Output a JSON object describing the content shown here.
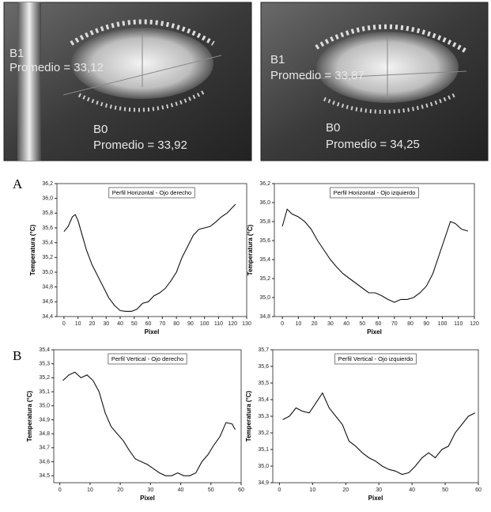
{
  "images": [
    {
      "b1": "B1",
      "b1_avg": "Promedio = 33,12",
      "b0": "B0",
      "b0_avg": "Promedio = 33,92"
    },
    {
      "b1": "B1",
      "b1_avg": "Promedio = 33,87",
      "b0": "B0",
      "b0_avg": "Promedio = 34,25"
    }
  ],
  "panel_labels": [
    "A",
    "B"
  ],
  "chart_data": [
    {
      "type": "line",
      "title": "Perfil Horizontal - Ojo derecho",
      "xlabel": "Pixel",
      "ylabel": "Temperatura (°C)",
      "color": "#111111",
      "x": [
        0,
        3,
        6,
        8,
        10,
        13,
        16,
        20,
        24,
        28,
        32,
        36,
        40,
        44,
        48,
        52,
        56,
        60,
        64,
        68,
        72,
        76,
        80,
        84,
        88,
        92,
        96,
        100,
        104,
        108,
        112,
        116,
        120,
        122
      ],
      "values": [
        35.55,
        35.62,
        35.75,
        35.78,
        35.7,
        35.5,
        35.3,
        35.1,
        34.95,
        34.8,
        34.65,
        34.55,
        34.48,
        34.47,
        34.47,
        34.5,
        34.58,
        34.6,
        34.68,
        34.72,
        34.78,
        34.88,
        35.0,
        35.2,
        35.35,
        35.5,
        35.58,
        35.6,
        35.62,
        35.68,
        35.75,
        35.8,
        35.88,
        35.92
      ],
      "xlim": [
        -5,
        130
      ],
      "xticks": [
        0,
        10,
        20,
        30,
        40,
        50,
        60,
        70,
        80,
        90,
        100,
        110,
        120,
        130
      ],
      "ylim": [
        34.4,
        36.2
      ],
      "yticks": [
        {
          "value": 34.4,
          "label": "34,4"
        },
        {
          "value": 34.6,
          "label": "34,6"
        },
        {
          "value": 34.8,
          "label": "34,8"
        },
        {
          "value": 35.0,
          "label": "35,0"
        },
        {
          "value": 35.2,
          "label": "35,2"
        },
        {
          "value": 35.4,
          "label": "35,4"
        },
        {
          "value": 35.6,
          "label": "35,6"
        },
        {
          "value": 35.8,
          "label": "35,8"
        },
        {
          "value": 36.0,
          "label": "36,0"
        },
        {
          "value": 36.2,
          "label": "36,2"
        }
      ]
    },
    {
      "type": "line",
      "title": "Perfil Horizontal - Ojo izquierdo",
      "xlabel": "Pixel",
      "ylabel": "Temperatura (°C)",
      "color": "#111111",
      "x": [
        0,
        3,
        6,
        10,
        14,
        18,
        22,
        26,
        30,
        34,
        38,
        42,
        46,
        50,
        54,
        58,
        62,
        66,
        70,
        74,
        78,
        82,
        86,
        90,
        94,
        98,
        102,
        105,
        108,
        112,
        116
      ],
      "values": [
        35.75,
        35.93,
        35.88,
        35.85,
        35.8,
        35.72,
        35.6,
        35.5,
        35.4,
        35.32,
        35.25,
        35.2,
        35.15,
        35.1,
        35.05,
        35.05,
        35.02,
        34.98,
        34.95,
        34.98,
        34.98,
        35.0,
        35.05,
        35.12,
        35.25,
        35.45,
        35.65,
        35.8,
        35.78,
        35.72,
        35.7
      ],
      "xlim": [
        -5,
        120
      ],
      "xticks": [
        0,
        10,
        20,
        30,
        40,
        50,
        60,
        70,
        80,
        90,
        100,
        110,
        120
      ],
      "ylim": [
        34.8,
        36.2
      ],
      "yticks": [
        {
          "value": 34.8,
          "label": "34,8"
        },
        {
          "value": 35.0,
          "label": "35,0"
        },
        {
          "value": 35.2,
          "label": "35,2"
        },
        {
          "value": 35.4,
          "label": "35,4"
        },
        {
          "value": 35.6,
          "label": "35,6"
        },
        {
          "value": 35.8,
          "label": "35,8"
        },
        {
          "value": 36.0,
          "label": "36,0"
        },
        {
          "value": 36.2,
          "label": "36,2"
        }
      ]
    },
    {
      "type": "line",
      "title": "Perfil Vertical - Ojo derecho",
      "xlabel": "Pixel",
      "ylabel": "Temperatura (°C)",
      "color": "#111111",
      "x": [
        1,
        3,
        5,
        7,
        9,
        11,
        13,
        15,
        17,
        19,
        21,
        23,
        25,
        27,
        29,
        31,
        33,
        35,
        37,
        39,
        41,
        43,
        45,
        47,
        49,
        51,
        53,
        55,
        57,
        58
      ],
      "values": [
        35.18,
        35.22,
        35.24,
        35.2,
        35.22,
        35.18,
        35.1,
        34.95,
        34.85,
        34.8,
        34.75,
        34.68,
        34.62,
        34.6,
        34.58,
        34.55,
        34.52,
        34.5,
        34.5,
        34.52,
        34.5,
        34.5,
        34.52,
        34.6,
        34.65,
        34.72,
        34.78,
        34.88,
        34.87,
        34.83
      ],
      "xlim": [
        -2,
        60
      ],
      "xticks": [
        0,
        10,
        20,
        30,
        40,
        50,
        60
      ],
      "ylim": [
        34.45,
        35.4
      ],
      "yticks": [
        {
          "value": 34.5,
          "label": "34,5"
        },
        {
          "value": 34.6,
          "label": "34,6"
        },
        {
          "value": 34.7,
          "label": "34,7"
        },
        {
          "value": 34.8,
          "label": "34,8"
        },
        {
          "value": 34.9,
          "label": "34,9"
        },
        {
          "value": 35.0,
          "label": "35,0"
        },
        {
          "value": 35.1,
          "label": "35,1"
        },
        {
          "value": 35.2,
          "label": "35,2"
        },
        {
          "value": 35.3,
          "label": "35,3"
        },
        {
          "value": 35.4,
          "label": "35,4"
        }
      ]
    },
    {
      "type": "line",
      "title": "Perfil Vertical - Ojo izquierdo",
      "xlabel": "Pixel",
      "ylabel": "Temperatura (°C)",
      "color": "#111111",
      "x": [
        1,
        3,
        5,
        7,
        9,
        11,
        13,
        15,
        17,
        19,
        21,
        23,
        25,
        27,
        29,
        31,
        33,
        35,
        37,
        39,
        41,
        43,
        45,
        47,
        49,
        51,
        53,
        55,
        57,
        59
      ],
      "values": [
        35.28,
        35.3,
        35.35,
        35.33,
        35.32,
        35.38,
        35.44,
        35.35,
        35.3,
        35.25,
        35.15,
        35.12,
        35.08,
        35.05,
        35.03,
        35.0,
        34.98,
        34.97,
        34.95,
        34.96,
        35.0,
        35.05,
        35.08,
        35.05,
        35.1,
        35.12,
        35.2,
        35.25,
        35.3,
        35.32
      ],
      "xlim": [
        -2,
        60
      ],
      "xticks": [
        0,
        10,
        20,
        30,
        40,
        50,
        60
      ],
      "ylim": [
        34.9,
        35.7
      ],
      "yticks": [
        {
          "value": 34.9,
          "label": "34,9"
        },
        {
          "value": 35.0,
          "label": "35,0"
        },
        {
          "value": 35.1,
          "label": "35,1"
        },
        {
          "value": 35.2,
          "label": "35,2"
        },
        {
          "value": 35.3,
          "label": "35,3"
        },
        {
          "value": 35.4,
          "label": "35,4"
        },
        {
          "value": 35.5,
          "label": "35,5"
        },
        {
          "value": 35.6,
          "label": "35,6"
        },
        {
          "value": 35.7,
          "label": "35,7"
        }
      ]
    }
  ]
}
